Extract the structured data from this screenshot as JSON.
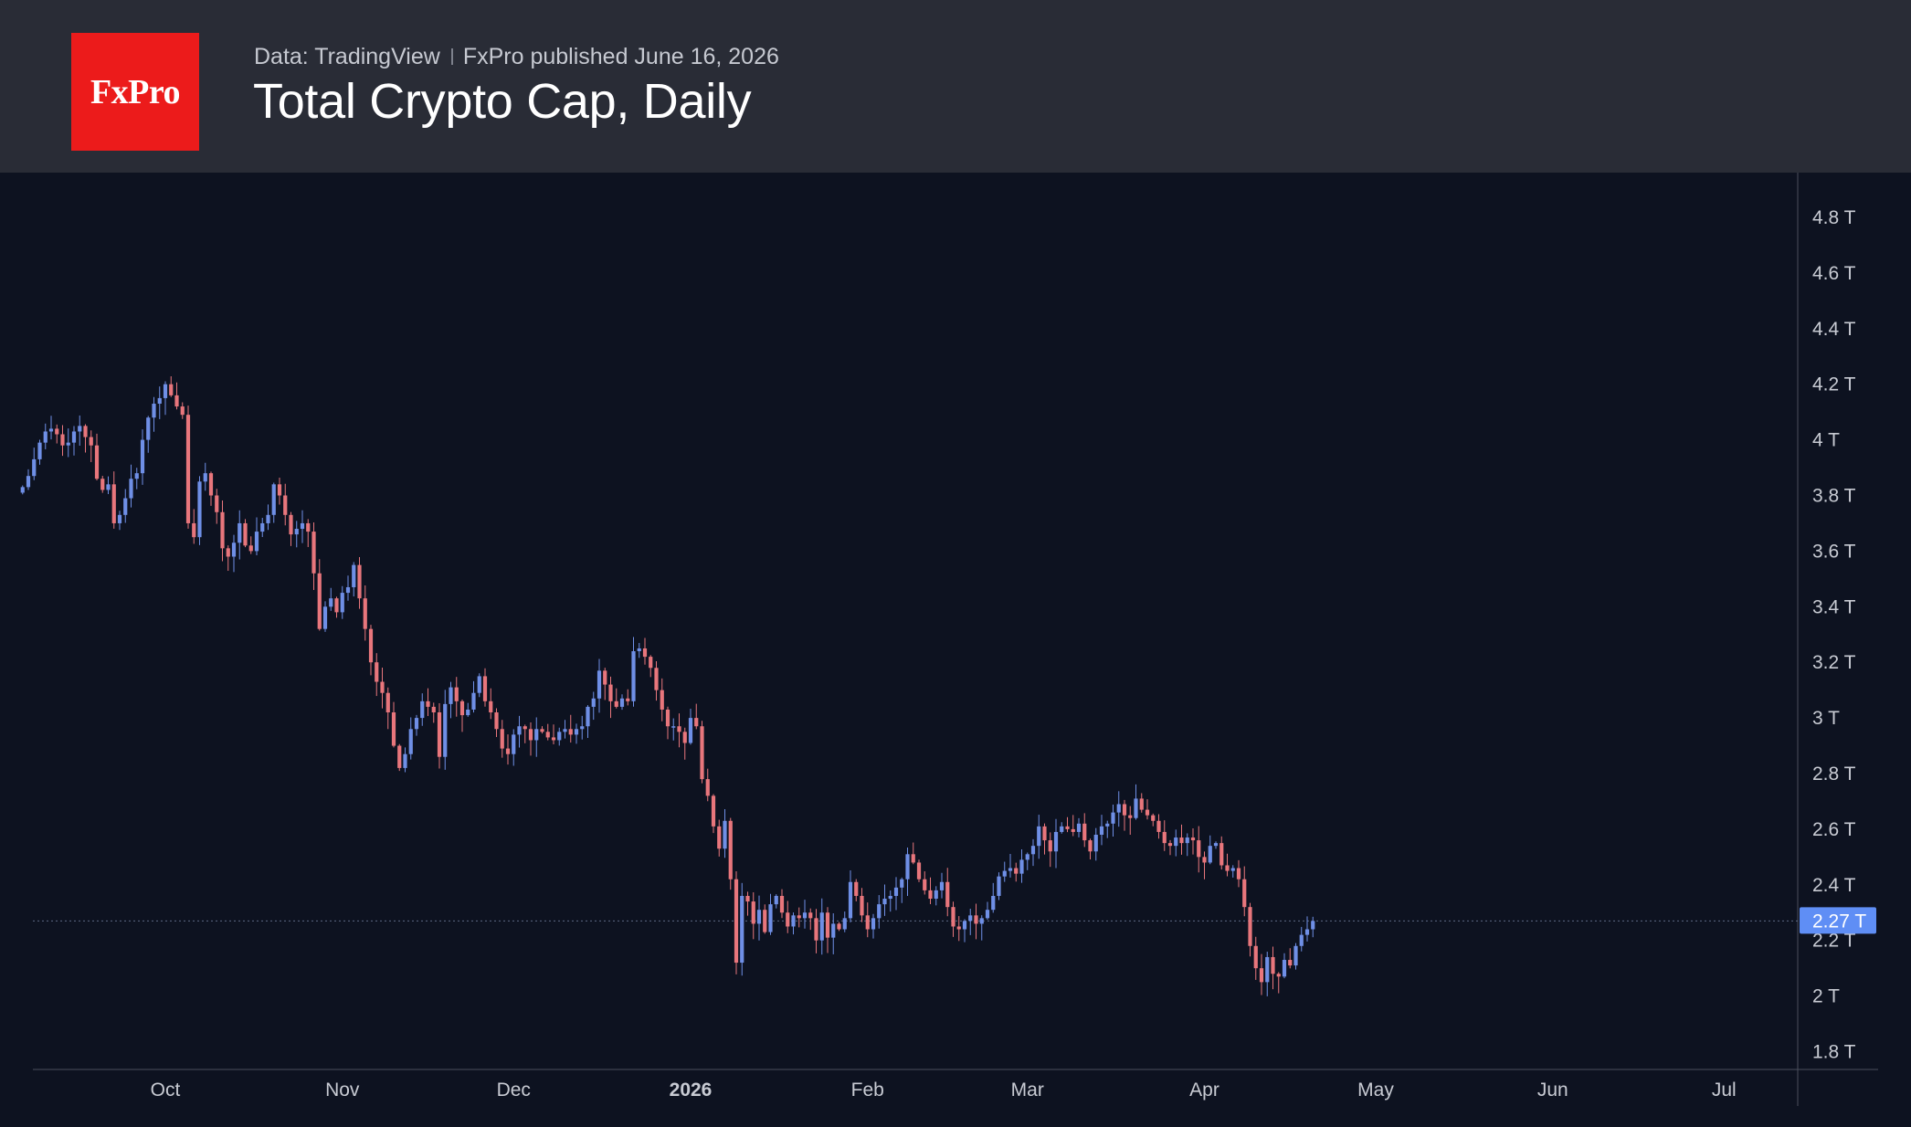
{
  "header": {
    "logo_text": "FxPro",
    "source": "Data: TradingView",
    "published": "FxPro published June 16, 2026",
    "title": "Total Crypto Cap, Daily"
  },
  "colors": {
    "header_bg": "#292c36",
    "chart_bg": "#0d1220",
    "logo_bg": "#ec1b1b",
    "up_candle": "#6f8fe6",
    "down_candle": "#e8767c",
    "last_price_tag": "#5f8ef5",
    "axis_text": "#c8cbd3"
  },
  "chart_data": {
    "type": "candlestick",
    "title": "Total Crypto Cap, Daily",
    "grid": false,
    "y_unit": "T",
    "ylim": [
      1.75,
      4.92
    ],
    "y_ticks": [
      {
        "value": 4.8,
        "label": "4.8 T"
      },
      {
        "value": 4.6,
        "label": "4.6 T"
      },
      {
        "value": 4.4,
        "label": "4.4 T"
      },
      {
        "value": 4.2,
        "label": "4.2 T"
      },
      {
        "value": 4.0,
        "label": "4 T"
      },
      {
        "value": 3.8,
        "label": "3.8 T"
      },
      {
        "value": 3.6,
        "label": "3.6 T"
      },
      {
        "value": 3.4,
        "label": "3.4 T"
      },
      {
        "value": 3.2,
        "label": "3.2 T"
      },
      {
        "value": 3.0,
        "label": "3 T"
      },
      {
        "value": 2.8,
        "label": "2.8 T"
      },
      {
        "value": 2.6,
        "label": "2.6 T"
      },
      {
        "value": 2.4,
        "label": "2.4 T"
      },
      {
        "value": 2.2,
        "label": "2.2 T"
      },
      {
        "value": 2.0,
        "label": "2 T"
      },
      {
        "value": 1.8,
        "label": "1.8 T"
      }
    ],
    "x_ticks": [
      {
        "date": "2025-10-01",
        "label": "Oct",
        "bold": false
      },
      {
        "date": "2025-11-01",
        "label": "Nov",
        "bold": false
      },
      {
        "date": "2025-12-01",
        "label": "Dec",
        "bold": false
      },
      {
        "date": "2026-01-01",
        "label": "2026",
        "bold": true
      },
      {
        "date": "2026-02-01",
        "label": "Feb",
        "bold": false
      },
      {
        "date": "2026-03-01",
        "label": "Mar",
        "bold": false
      },
      {
        "date": "2026-04-01",
        "label": "Apr",
        "bold": false
      },
      {
        "date": "2026-05-01",
        "label": "May",
        "bold": false
      },
      {
        "date": "2026-06-01",
        "label": "Jun",
        "bold": false
      },
      {
        "date": "2026-07-01",
        "label": "Jul",
        "bold": false
      }
    ],
    "last_price": {
      "value": 2.27,
      "label": "2.27 T"
    },
    "series": [
      {
        "start_date": "2025-09-06",
        "end_date": "2026-06-16",
        "closes": [
          3.83,
          3.87,
          3.93,
          3.99,
          4.03,
          4.04,
          4.02,
          3.98,
          3.99,
          4.03,
          4.05,
          4.01,
          3.98,
          3.86,
          3.82,
          3.84,
          3.7,
          3.73,
          3.79,
          3.86,
          3.88,
          4.0,
          4.08,
          4.13,
          4.15,
          4.2,
          4.16,
          4.12,
          4.09,
          3.7,
          3.65,
          3.85,
          3.88,
          3.8,
          3.74,
          3.61,
          3.58,
          3.63,
          3.7,
          3.62,
          3.6,
          3.67,
          3.7,
          3.73,
          3.84,
          3.8,
          3.73,
          3.66,
          3.68,
          3.7,
          3.67,
          3.52,
          3.32,
          3.4,
          3.43,
          3.38,
          3.45,
          3.47,
          3.55,
          3.43,
          3.32,
          3.2,
          3.13,
          3.09,
          3.02,
          2.9,
          2.82,
          2.87,
          2.96,
          3.0,
          3.06,
          3.04,
          3.02,
          2.86,
          3.05,
          3.11,
          3.06,
          3.01,
          3.03,
          3.09,
          3.15,
          3.06,
          3.02,
          2.96,
          2.89,
          2.87,
          2.94,
          2.97,
          2.96,
          2.92,
          2.96,
          2.95,
          2.93,
          2.92,
          2.95,
          2.96,
          2.94,
          2.96,
          2.97,
          3.04,
          3.07,
          3.17,
          3.12,
          3.06,
          3.04,
          3.07,
          3.06,
          3.24,
          3.25,
          3.22,
          3.18,
          3.1,
          3.03,
          2.97,
          2.97,
          2.95,
          2.91,
          3.0,
          2.97,
          2.78,
          2.72,
          2.61,
          2.53,
          2.63,
          2.42,
          2.12,
          2.36,
          2.34,
          2.26,
          2.31,
          2.23,
          2.33,
          2.36,
          2.3,
          2.25,
          2.29,
          2.28,
          2.3,
          2.28,
          2.2,
          2.3,
          2.21,
          2.26,
          2.24,
          2.28,
          2.41,
          2.36,
          2.29,
          2.24,
          2.28,
          2.33,
          2.35,
          2.36,
          2.39,
          2.42,
          2.51,
          2.48,
          2.42,
          2.38,
          2.35,
          2.38,
          2.41,
          2.32,
          2.25,
          2.24,
          2.27,
          2.29,
          2.26,
          2.28,
          2.31,
          2.36,
          2.43,
          2.45,
          2.46,
          2.44,
          2.49,
          2.51,
          2.54,
          2.61,
          2.56,
          2.52,
          2.59,
          2.61,
          2.6,
          2.59,
          2.62,
          2.56,
          2.52,
          2.58,
          2.61,
          2.62,
          2.66,
          2.69,
          2.65,
          2.64,
          2.71,
          2.67,
          2.65,
          2.63,
          2.59,
          2.55,
          2.54,
          2.57,
          2.55,
          2.57,
          2.56,
          2.5,
          2.48,
          2.54,
          2.55,
          2.47,
          2.45,
          2.46,
          2.42,
          2.32,
          2.18,
          2.1,
          2.05,
          2.14,
          2.08,
          2.07,
          2.13,
          2.11,
          2.18,
          2.22,
          2.24,
          2.27
        ]
      }
    ]
  }
}
